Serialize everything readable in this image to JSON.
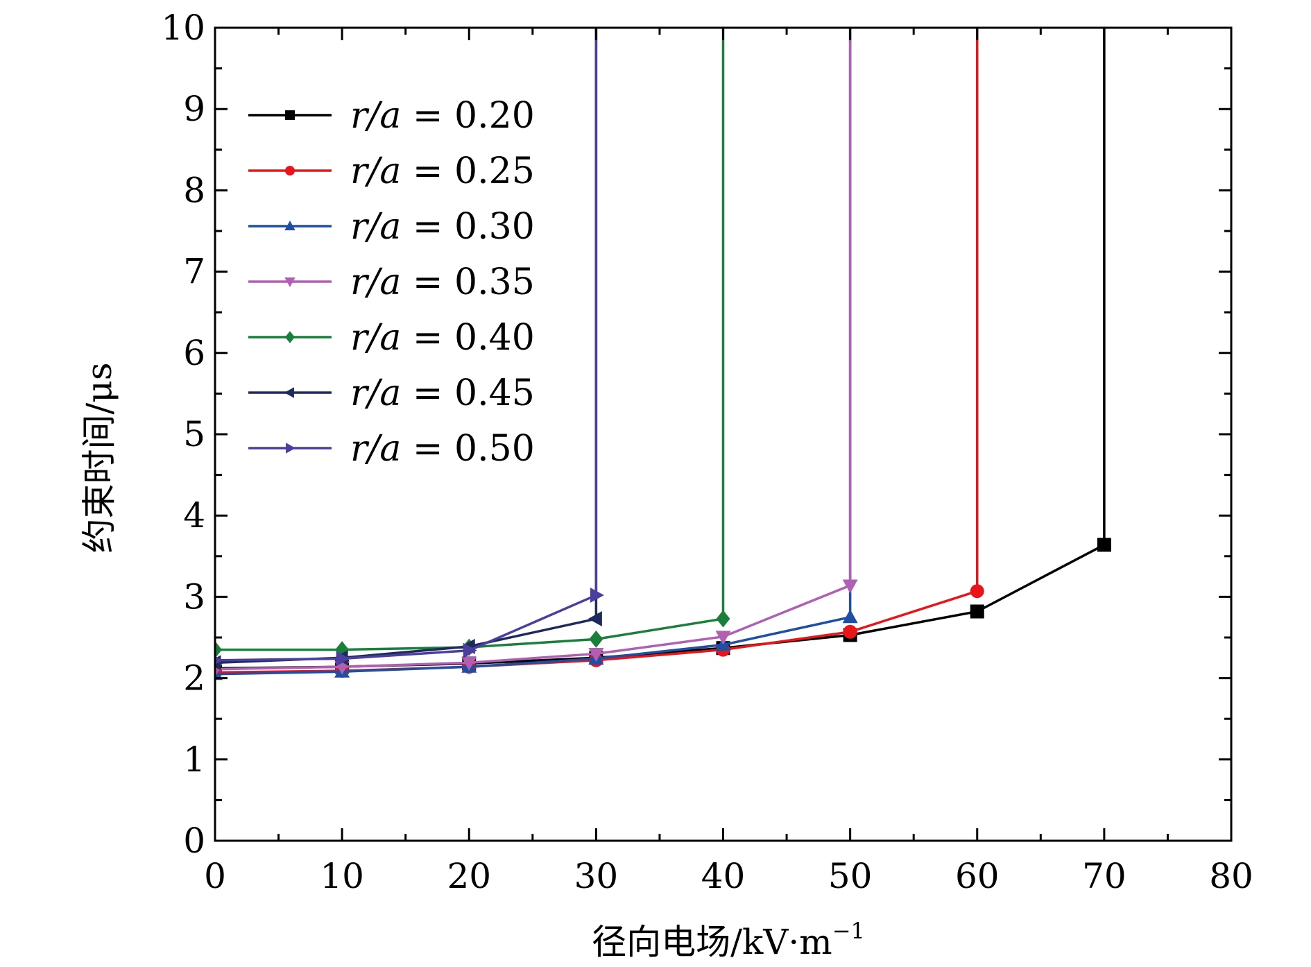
{
  "chart_data": {
    "type": "line",
    "xlabel": "径向电场/kV·m",
    "xlabel_sup": "−1",
    "ylabel": "约束时间/μs",
    "xlim": [
      0,
      80
    ],
    "ylim": [
      0,
      10
    ],
    "xticks": [
      0,
      10,
      20,
      30,
      40,
      50,
      60,
      70,
      80
    ],
    "yticks": [
      0,
      1,
      2,
      3,
      4,
      5,
      6,
      7,
      8,
      9,
      10
    ],
    "grid": false,
    "legend_position": "top-left",
    "series": [
      {
        "name": "r/a = 0.20",
        "label_var": "r/a",
        "label_eq": " = 0.20",
        "color": "#000000",
        "marker": "square",
        "x": [
          0,
          10,
          20,
          30,
          40,
          50,
          60,
          70,
          70
        ],
        "y": [
          2.12,
          2.14,
          2.18,
          2.25,
          2.37,
          2.53,
          2.82,
          3.64,
          10
        ]
      },
      {
        "name": "r/a = 0.25",
        "label_var": "r/a",
        "label_eq": " = 0.25",
        "color": "#e8161b",
        "marker": "circle",
        "x": [
          0,
          10,
          20,
          30,
          40,
          50,
          60,
          60
        ],
        "y": [
          2.07,
          2.09,
          2.14,
          2.22,
          2.35,
          2.57,
          3.07,
          10
        ]
      },
      {
        "name": "r/a = 0.30",
        "label_var": "r/a",
        "label_eq": " = 0.30",
        "color": "#1f4fa3",
        "marker": "triangle-up",
        "x": [
          0,
          10,
          20,
          30,
          40,
          50,
          50
        ],
        "y": [
          2.05,
          2.08,
          2.14,
          2.24,
          2.41,
          2.75,
          10
        ]
      },
      {
        "name": "r/a = 0.35",
        "label_var": "r/a",
        "label_eq": " = 0.35",
        "color": "#b05fb3",
        "marker": "triangle-down",
        "x": [
          0,
          10,
          20,
          30,
          40,
          50,
          50
        ],
        "y": [
          2.11,
          2.14,
          2.19,
          2.3,
          2.51,
          3.14,
          10
        ]
      },
      {
        "name": "r/a = 0.40",
        "label_var": "r/a",
        "label_eq": " = 0.40",
        "color": "#1a7f3a",
        "marker": "diamond",
        "x": [
          0,
          10,
          20,
          30,
          40,
          40
        ],
        "y": [
          2.35,
          2.35,
          2.38,
          2.48,
          2.73,
          10
        ]
      },
      {
        "name": "r/a = 0.45",
        "label_var": "r/a",
        "label_eq": " = 0.45",
        "color": "#1d2a5c",
        "marker": "triangle-left",
        "x": [
          0,
          10,
          20,
          30,
          30
        ],
        "y": [
          2.19,
          2.25,
          2.39,
          2.73,
          10
        ]
      },
      {
        "name": "r/a = 0.50",
        "label_var": "r/a",
        "label_eq": " = 0.50",
        "color": "#4b3f9e",
        "marker": "triangle-right",
        "x": [
          0,
          10,
          20,
          30,
          30
        ],
        "y": [
          2.22,
          2.24,
          2.34,
          3.02,
          10
        ]
      }
    ]
  }
}
